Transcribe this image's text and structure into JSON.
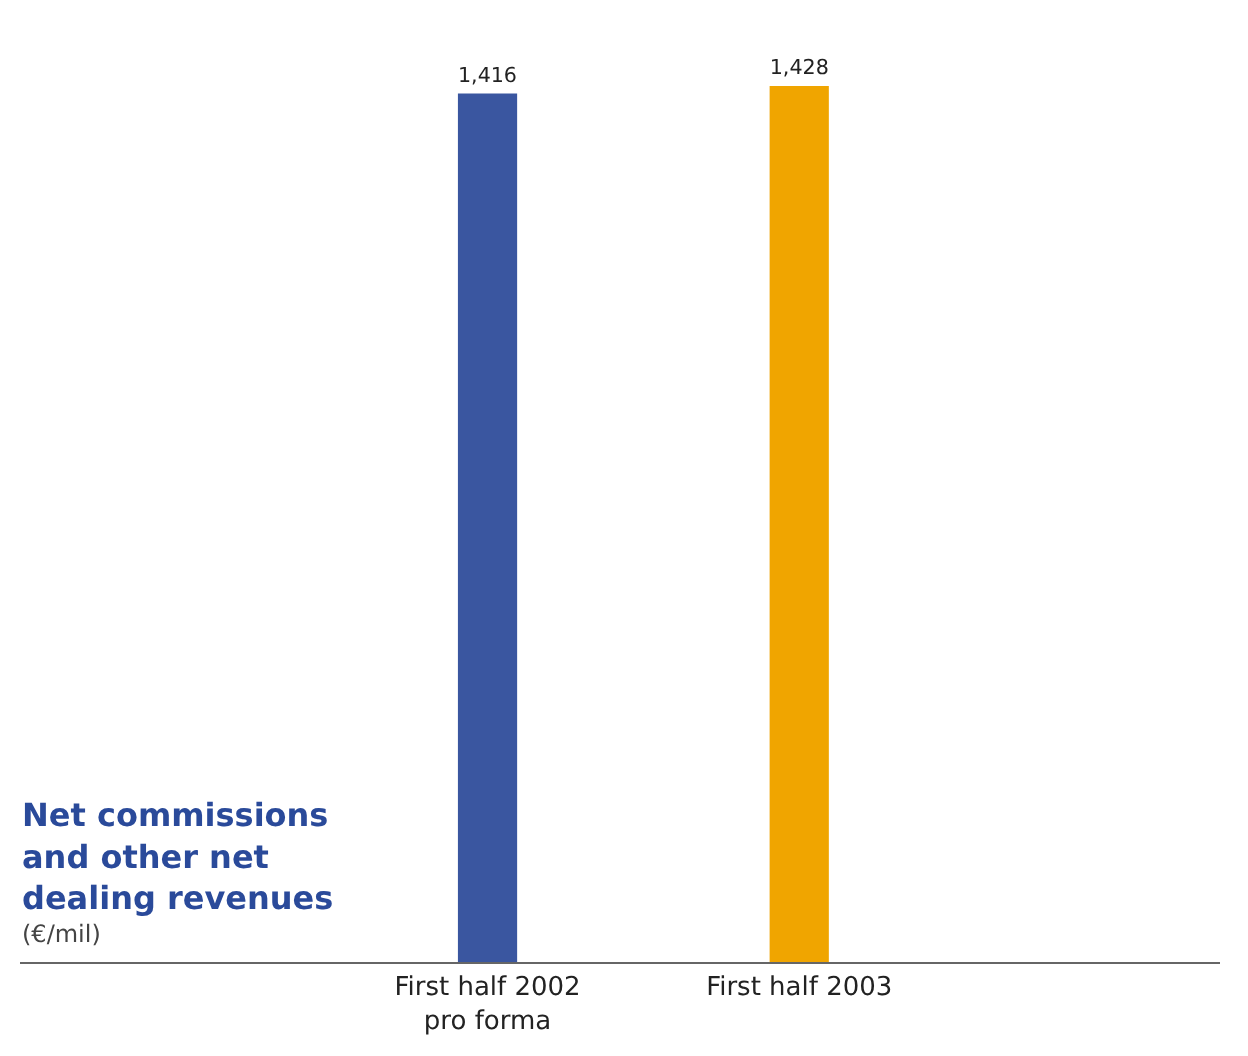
{
  "chart_data": {
    "type": "bar",
    "title": "Net commissions\nand other net\ndealing revenues",
    "subtitle": "(€/mil)",
    "categories": [
      "First half 2002\npro forma",
      "First half 2003"
    ],
    "values": [
      1416,
      1428
    ],
    "colors": [
      "#3a56a0",
      "#f0a500"
    ],
    "value_labels": [
      "1,416",
      "1,428"
    ]
  }
}
